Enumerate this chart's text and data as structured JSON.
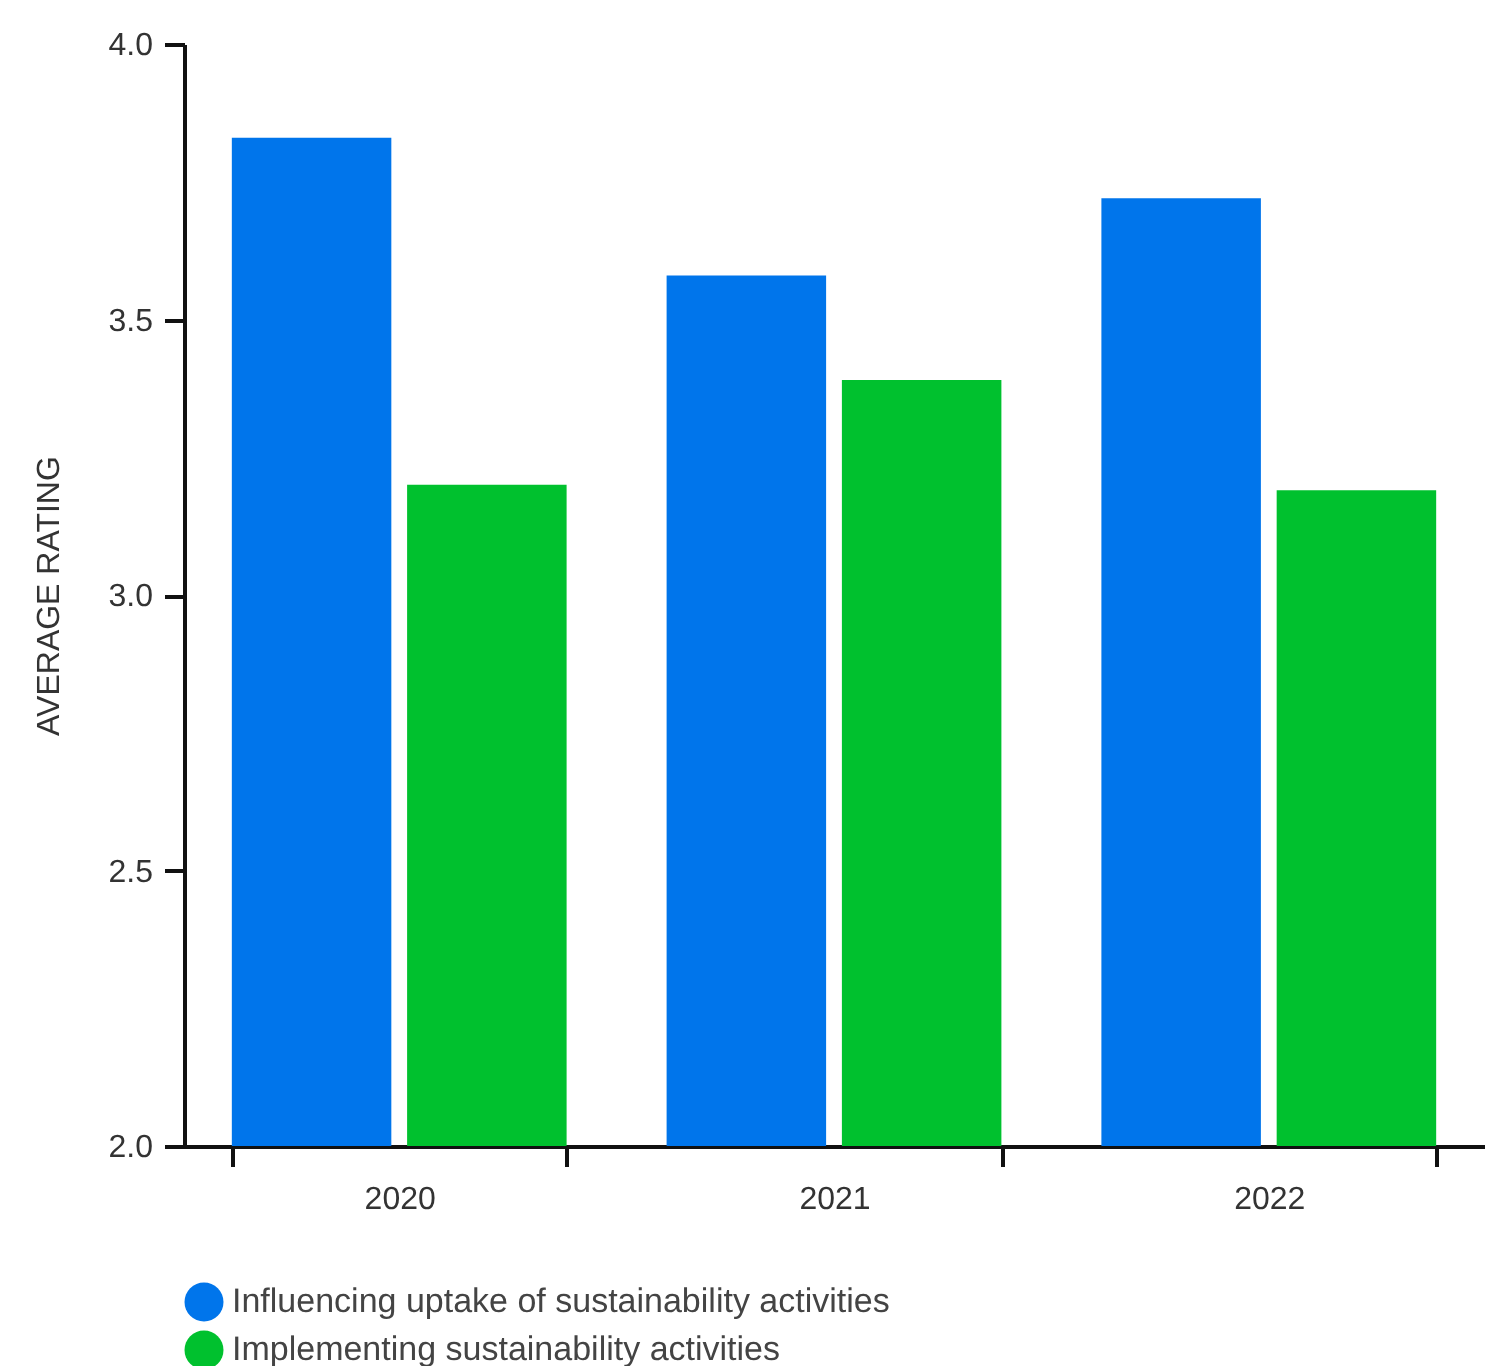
{
  "chart_data": {
    "type": "bar",
    "ylabel": "AVERAGE RATING",
    "categories": [
      "2020",
      "2021",
      "2022"
    ],
    "series": [
      {
        "name": "Influencing uptake of sustainability activities",
        "color": "#0075eb",
        "values": [
          3.83,
          3.58,
          3.72
        ]
      },
      {
        "name": "Implementing sustainability activities",
        "color": "#00c12e",
        "values": [
          3.2,
          3.39,
          3.19
        ]
      }
    ],
    "ylim": [
      2.0,
      4.0
    ],
    "yticks": [
      {
        "value": 2,
        "label": "2.0"
      },
      2.5,
      {
        "value": 3,
        "label": "3.0"
      },
      3.5,
      {
        "value": 4,
        "label": "4.0"
      }
    ],
    "grid": false,
    "legend": "bottom"
  }
}
